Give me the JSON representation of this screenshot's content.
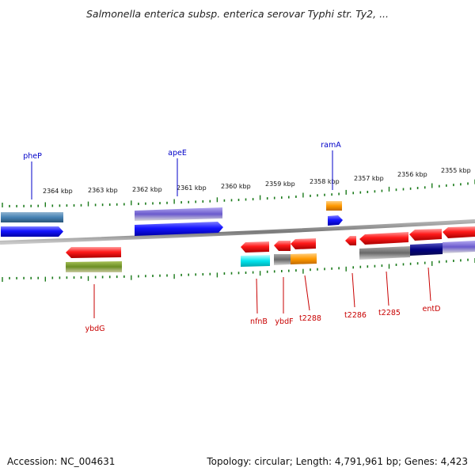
{
  "title": "Salmonella enterica subsp. enterica serovar Typhi str. Ty2, ...",
  "footer": {
    "accession": "Accession: NC_004631",
    "topology": "Topology: circular; Length: 4,791,961 bp; Genes: 4,423"
  },
  "colors": {
    "backbone": "#7d7d7d",
    "tick": "#1a7a1a",
    "label_top": "#0000c8",
    "label_bottom": "#c80000",
    "ruler_text": "#111111"
  },
  "ruler_labels": [
    "2364 kbp",
    "2363 kbp",
    "2362 kbp",
    "2361 kbp",
    "2360 kbp",
    "2359 kbp",
    "2358 kbp",
    "2357 kbp",
    "2356 kbp",
    "2355 kbp"
  ],
  "top_gene_labels": [
    "pheP",
    "apeE",
    "ramA"
  ],
  "bottom_gene_labels": [
    "ybdG",
    "nfnB",
    "ybdF",
    "t2288",
    "t2286",
    "t2285",
    "entD"
  ]
}
